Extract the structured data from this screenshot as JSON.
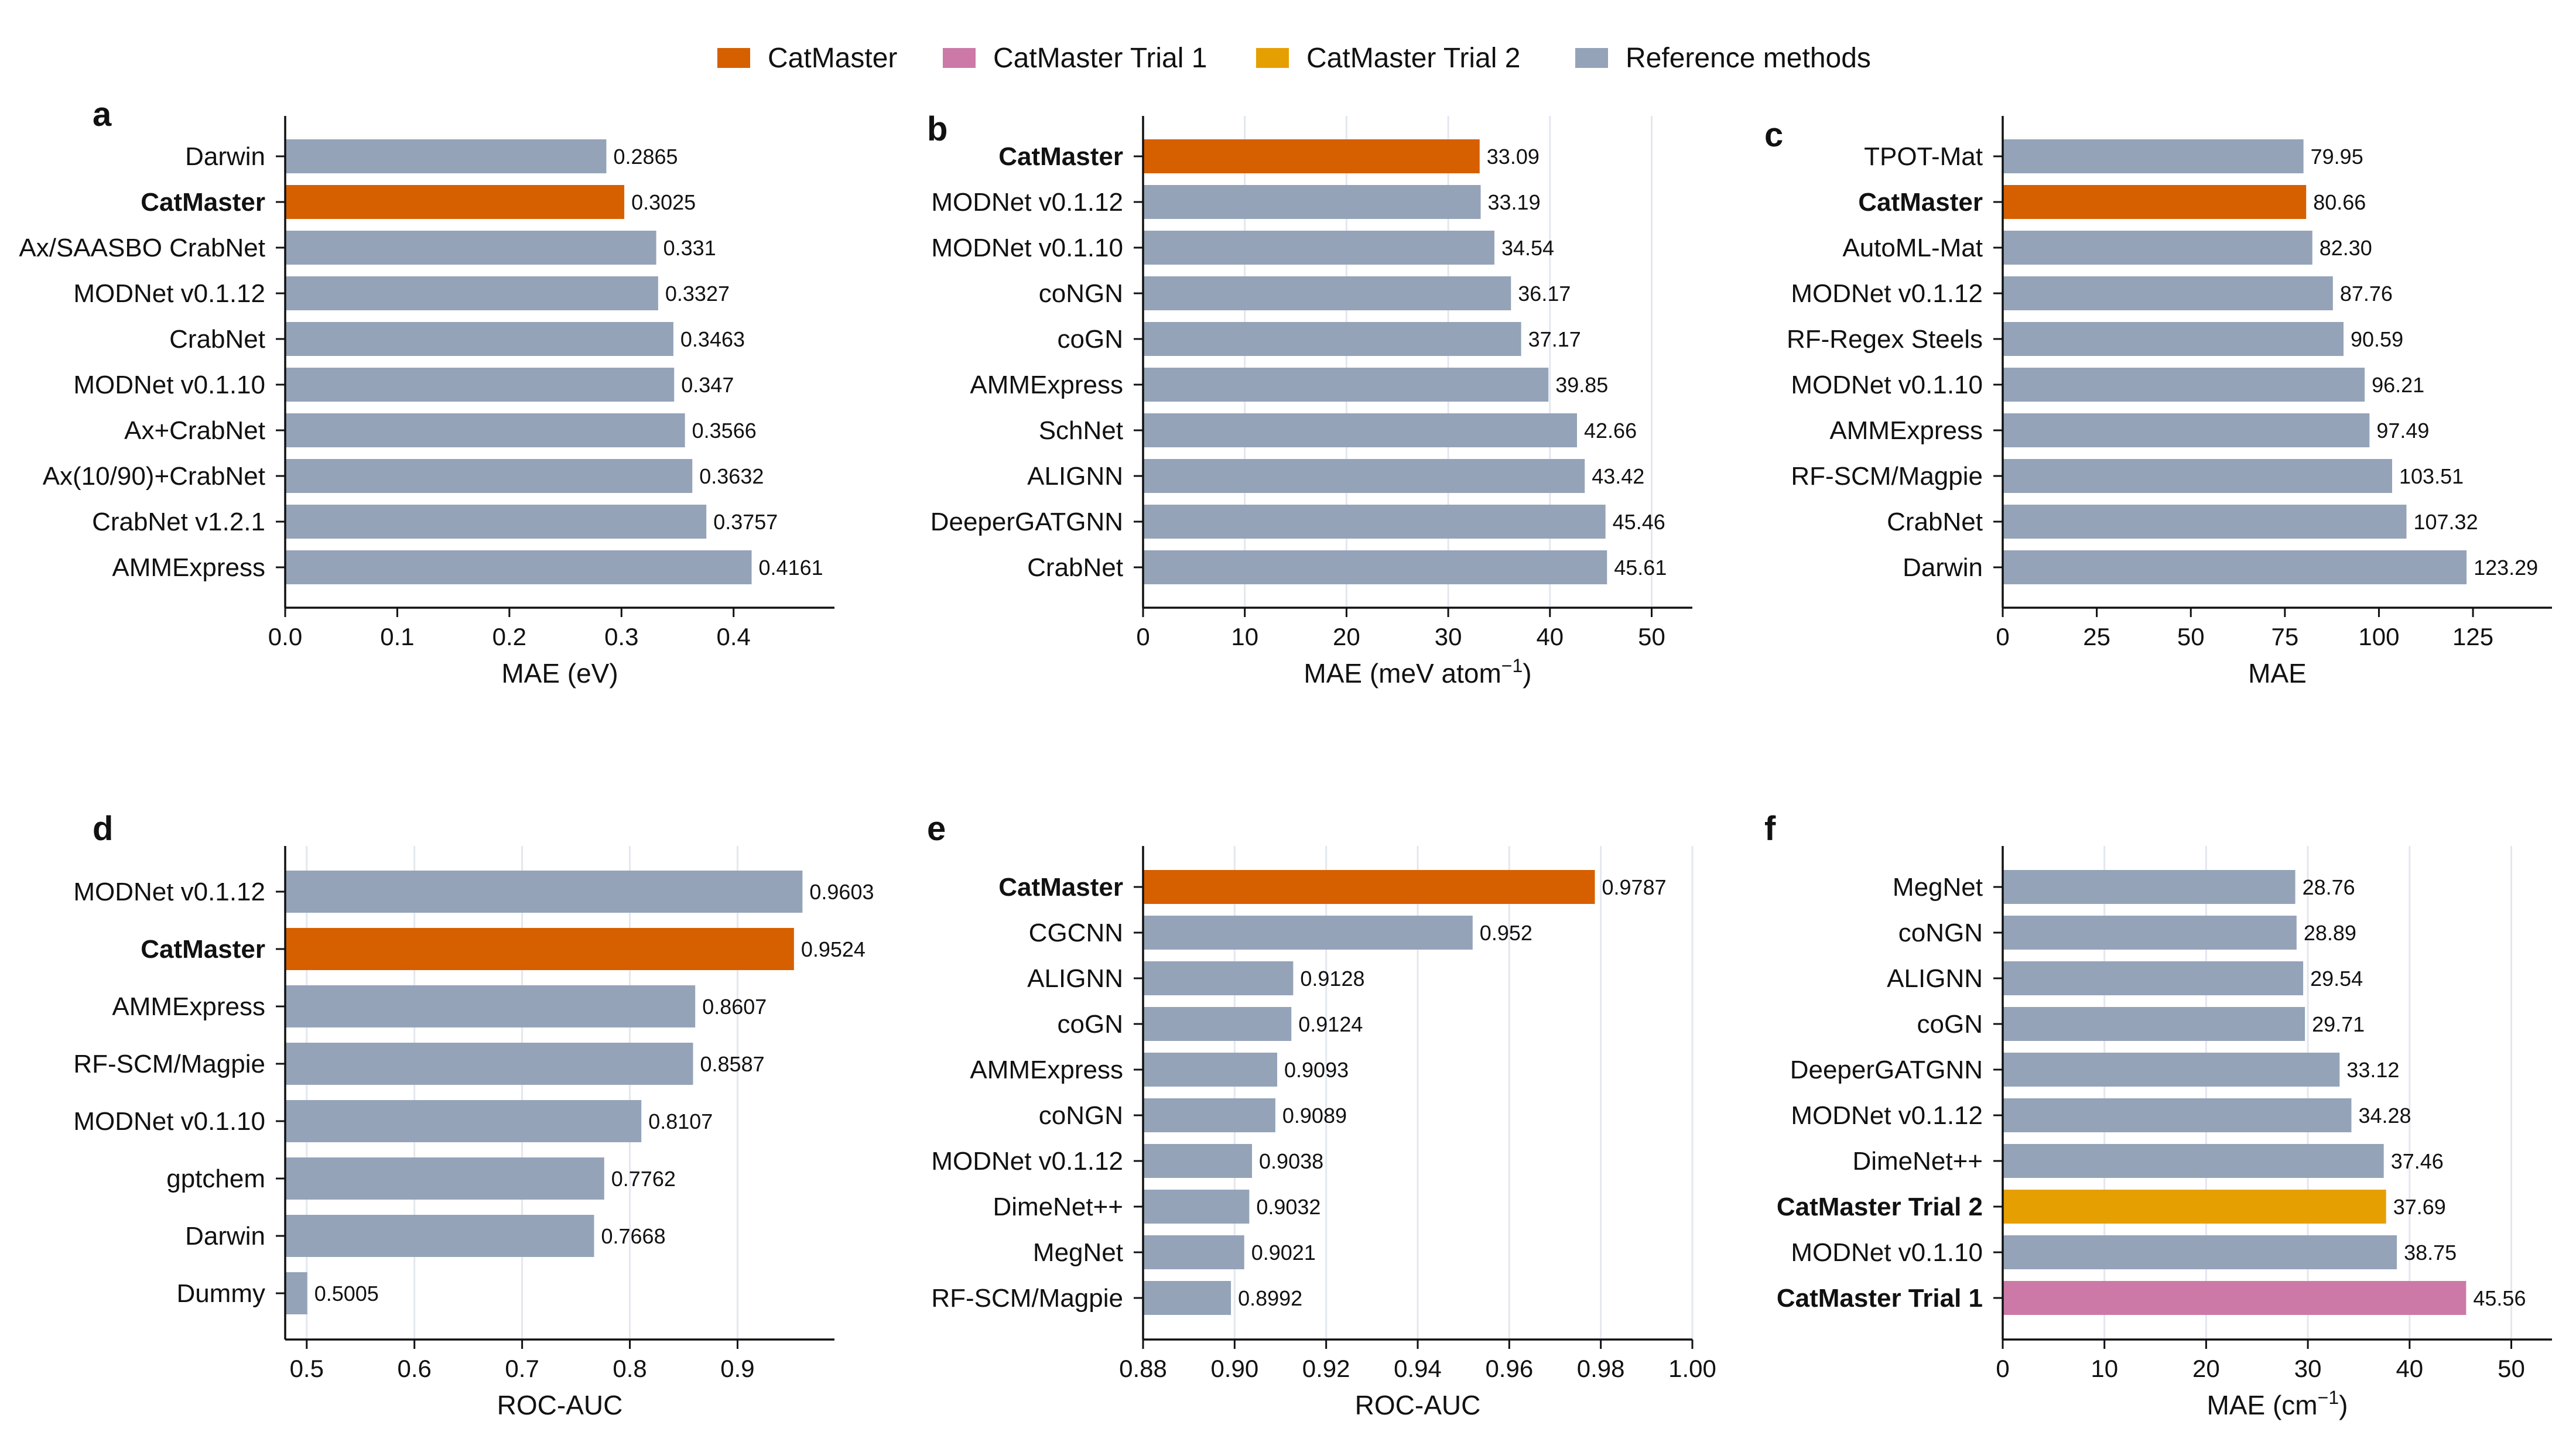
{
  "legend": [
    {
      "label": "CatMaster",
      "color": "#d65f00"
    },
    {
      "label": "CatMaster Trial 1",
      "color": "#cc79a7"
    },
    {
      "label": "CatMaster Trial 2",
      "color": "#e69f00"
    },
    {
      "label": "Reference methods",
      "color": "#94a3b8"
    }
  ],
  "colors": {
    "catmaster": "#d65f00",
    "trial1": "#cc79a7",
    "trial2": "#e69f00",
    "reference": "#94a3b8",
    "grid": "#e3e7ee"
  },
  "chart_data": [
    {
      "panel": "a",
      "type": "bar",
      "orientation": "horizontal",
      "xlabel": "MAE (eV)",
      "xlim": [
        0,
        0.49
      ],
      "xticks": [
        0.0,
        0.1,
        0.2,
        0.3,
        0.4
      ],
      "xtick_labels": [
        "0.0",
        "0.1",
        "0.2",
        "0.3",
        "0.4"
      ],
      "categories": [
        "Darwin",
        "CatMaster",
        "Ax/SAASBO CrabNet",
        "MODNet v0.1.12",
        "CrabNet",
        "MODNet v0.1.10",
        "Ax+CrabNet",
        "Ax(10/90)+CrabNet",
        "CrabNet v1.2.1",
        "AMMExpress"
      ],
      "values": [
        0.2865,
        0.3025,
        0.331,
        0.3327,
        0.3463,
        0.347,
        0.3566,
        0.3632,
        0.3757,
        0.4161
      ],
      "value_labels": [
        "0.2865",
        "0.3025",
        "0.331",
        "0.3327",
        "0.3463",
        "0.347",
        "0.3566",
        "0.3632",
        "0.3757",
        "0.4161"
      ],
      "groups": [
        "reference",
        "catmaster",
        "reference",
        "reference",
        "reference",
        "reference",
        "reference",
        "reference",
        "reference",
        "reference"
      ],
      "grid": false
    },
    {
      "panel": "b",
      "type": "bar",
      "orientation": "horizontal",
      "xlabel": "MAE (meV atom",
      "xlabel_sup": "−1",
      "xlabel_end": ")",
      "xlim": [
        0,
        54
      ],
      "xticks": [
        0,
        10,
        20,
        30,
        40,
        50
      ],
      "xtick_labels": [
        "0",
        "10",
        "20",
        "30",
        "40",
        "50"
      ],
      "categories": [
        "CatMaster",
        "MODNet v0.1.12",
        "MODNet v0.1.10",
        "coNGN",
        "coGN",
        "AMMExpress",
        "SchNet",
        "ALIGNN",
        "DeeperGATGNN",
        "CrabNet"
      ],
      "values": [
        33.09,
        33.19,
        34.54,
        36.17,
        37.17,
        39.85,
        42.66,
        43.42,
        45.46,
        45.61
      ],
      "value_labels": [
        "33.09",
        "33.19",
        "34.54",
        "36.17",
        "37.17",
        "39.85",
        "42.66",
        "43.42",
        "45.46",
        "45.61"
      ],
      "groups": [
        "catmaster",
        "reference",
        "reference",
        "reference",
        "reference",
        "reference",
        "reference",
        "reference",
        "reference",
        "reference"
      ],
      "grid": true
    },
    {
      "panel": "c",
      "type": "bar",
      "orientation": "horizontal",
      "xlabel": "MAE",
      "xlim": [
        0,
        146
      ],
      "xticks": [
        0,
        25,
        50,
        75,
        100,
        125
      ],
      "xtick_labels": [
        "0",
        "25",
        "50",
        "75",
        "100",
        "125"
      ],
      "categories": [
        "TPOT-Mat",
        "CatMaster",
        "AutoML-Mat",
        "MODNet v0.1.12",
        "RF-Regex Steels",
        "MODNet v0.1.10",
        "AMMExpress",
        "RF-SCM/Magpie",
        "CrabNet",
        "Darwin"
      ],
      "values": [
        79.95,
        80.66,
        82.3,
        87.76,
        90.59,
        96.21,
        97.49,
        103.51,
        107.32,
        123.29
      ],
      "value_labels": [
        "79.95",
        "80.66",
        "82.30",
        "87.76",
        "90.59",
        "96.21",
        "97.49",
        "103.51",
        "107.32",
        "123.29"
      ],
      "groups": [
        "reference",
        "catmaster",
        "reference",
        "reference",
        "reference",
        "reference",
        "reference",
        "reference",
        "reference",
        "reference"
      ],
      "grid": false
    },
    {
      "panel": "d",
      "type": "bar",
      "orientation": "horizontal",
      "xlabel": "ROC-AUC",
      "xlim": [
        0.48,
        0.99
      ],
      "xticks": [
        0.5,
        0.6,
        0.7,
        0.8,
        0.9
      ],
      "xtick_labels": [
        "0.5",
        "0.6",
        "0.7",
        "0.8",
        "0.9"
      ],
      "categories": [
        "MODNet v0.1.12",
        "CatMaster",
        "AMMExpress",
        "RF-SCM/Magpie",
        "MODNet v0.1.10",
        "gptchem",
        "Darwin",
        "Dummy"
      ],
      "values": [
        0.9603,
        0.9524,
        0.8607,
        0.8587,
        0.8107,
        0.7762,
        0.7668,
        0.5005
      ],
      "value_labels": [
        "0.9603",
        "0.9524",
        "0.8607",
        "0.8587",
        "0.8107",
        "0.7762",
        "0.7668",
        "0.5005"
      ],
      "groups": [
        "reference",
        "catmaster",
        "reference",
        "reference",
        "reference",
        "reference",
        "reference",
        "reference"
      ],
      "grid": true
    },
    {
      "panel": "e",
      "type": "bar",
      "orientation": "horizontal",
      "xlabel": "ROC-AUC",
      "xlim": [
        0.88,
        1.0
      ],
      "xticks": [
        0.88,
        0.9,
        0.92,
        0.94,
        0.96,
        0.98,
        1.0
      ],
      "xtick_labels": [
        "0.88",
        "0.90",
        "0.92",
        "0.94",
        "0.96",
        "0.98",
        "1.00"
      ],
      "categories": [
        "CatMaster",
        "CGCNN",
        "ALIGNN",
        "coGN",
        "AMMExpress",
        "coNGN",
        "MODNet v0.1.12",
        "DimeNet++",
        "MegNet",
        "RF-SCM/Magpie"
      ],
      "values": [
        0.9787,
        0.952,
        0.9128,
        0.9124,
        0.9093,
        0.9089,
        0.9038,
        0.9032,
        0.9021,
        0.8992
      ],
      "value_labels": [
        "0.9787",
        "0.952",
        "0.9128",
        "0.9124",
        "0.9093",
        "0.9089",
        "0.9038",
        "0.9032",
        "0.9021",
        "0.8992"
      ],
      "groups": [
        "catmaster",
        "reference",
        "reference",
        "reference",
        "reference",
        "reference",
        "reference",
        "reference",
        "reference",
        "reference"
      ],
      "grid": true
    },
    {
      "panel": "f",
      "type": "bar",
      "orientation": "horizontal",
      "xlabel": "MAE (cm",
      "xlabel_sup": "−1",
      "xlabel_end": ")",
      "xlim": [
        0,
        54
      ],
      "xticks": [
        0,
        10,
        20,
        30,
        40,
        50
      ],
      "xtick_labels": [
        "0",
        "10",
        "20",
        "30",
        "40",
        "50"
      ],
      "categories": [
        "MegNet",
        "coNGN",
        "ALIGNN",
        "coGN",
        "DeeperGATGNN",
        "MODNet v0.1.12",
        "DimeNet++",
        "CatMaster Trial 2",
        "MODNet v0.1.10",
        "CatMaster Trial 1"
      ],
      "values": [
        28.76,
        28.89,
        29.54,
        29.71,
        33.12,
        34.28,
        37.46,
        37.69,
        38.75,
        45.56
      ],
      "value_labels": [
        "28.76",
        "28.89",
        "29.54",
        "29.71",
        "33.12",
        "34.28",
        "37.46",
        "37.69",
        "38.75",
        "45.56"
      ],
      "groups": [
        "reference",
        "reference",
        "reference",
        "reference",
        "reference",
        "reference",
        "reference",
        "trial2",
        "reference",
        "trial1"
      ],
      "grid": true
    }
  ]
}
